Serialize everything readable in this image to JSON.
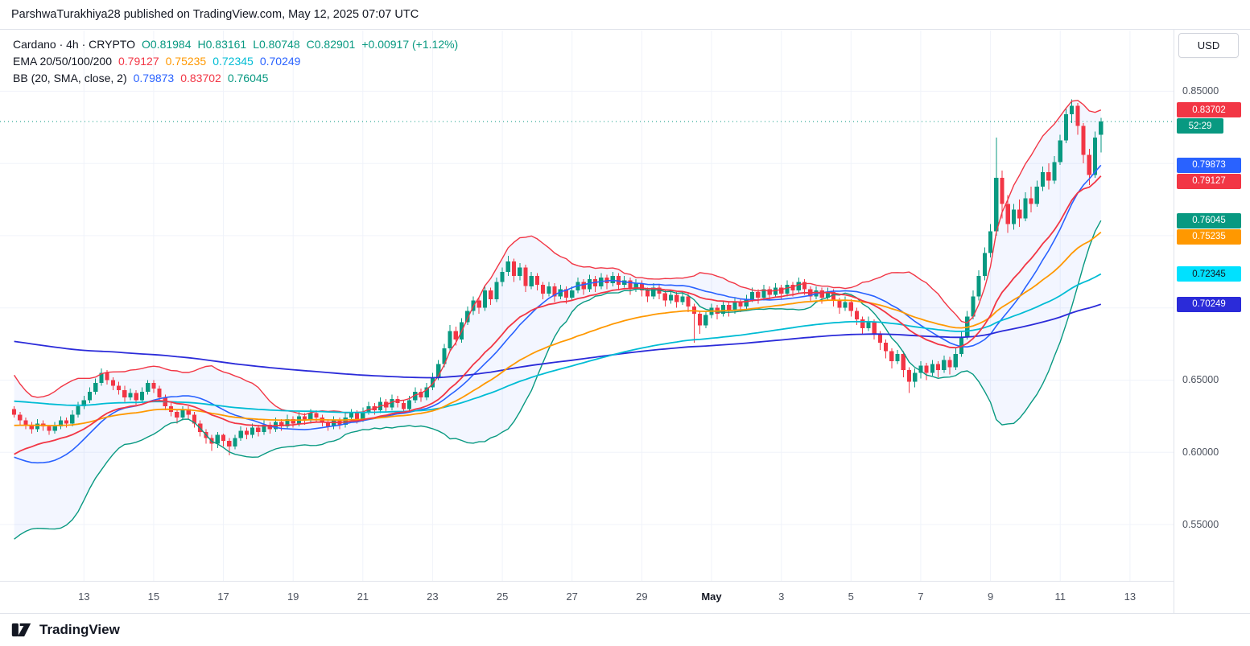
{
  "header": {
    "publish_line": "ParshwaTurakhiya28 published on TradingView.com, May 12, 2025 07:07 UTC"
  },
  "toolbar": {
    "currency_label": "USD"
  },
  "footer": {
    "brand": "TradingView"
  },
  "legend": {
    "symbol_row": {
      "title": "Cardano · 4h · CRYPTO",
      "open": "O0.81984",
      "high": "H0.83161",
      "low": "L0.80748",
      "close": "C0.82901",
      "change": "+0.00917 (+1.12%)"
    },
    "ema_row": {
      "label": "EMA 20/50/100/200",
      "values": [
        {
          "text": "0.79127",
          "color": "#f23645"
        },
        {
          "text": "0.75235",
          "color": "#ff9800"
        },
        {
          "text": "0.72345",
          "color": "#00bcd4"
        },
        {
          "text": "0.70249",
          "color": "#2962ff"
        }
      ]
    },
    "bb_row": {
      "label": "BB (20, SMA, close, 2)",
      "values": [
        {
          "text": "0.79873",
          "color": "#2962ff"
        },
        {
          "text": "0.83702",
          "color": "#f23645"
        },
        {
          "text": "0.76045",
          "color": "#089981"
        }
      ]
    }
  },
  "price_axis": {
    "visible_labels": [
      {
        "price": 0.85,
        "text": "0.85000"
      },
      {
        "price": 0.8,
        "text": "0.80000"
      },
      {
        "price": 0.75,
        "text": "0.75000"
      },
      {
        "price": 0.7,
        "text": "0.70000"
      },
      {
        "price": 0.65,
        "text": "0.65000"
      },
      {
        "price": 0.6,
        "text": "0.60000"
      },
      {
        "price": 0.55,
        "text": "0.55000"
      }
    ],
    "tags": [
      {
        "text": "0.83702",
        "price": 0.83702,
        "bg": "#f23645",
        "fg": "#ffffff",
        "name": "bb-upper-tag"
      },
      {
        "text": "52:29",
        "price": 0.82901,
        "bg": "#089981",
        "fg": "#ffffff",
        "name": "bar-countdown-tag"
      },
      {
        "text": "0.79873",
        "price": 0.79873,
        "bg": "#2962ff",
        "fg": "#ffffff",
        "name": "bb-basis-tag"
      },
      {
        "text": "0.79127",
        "price": 0.79127,
        "bg": "#f23645",
        "fg": "#ffffff",
        "name": "ema20-tag"
      },
      {
        "text": "0.76045",
        "price": 0.76045,
        "bg": "#089981",
        "fg": "#ffffff",
        "name": "bb-lower-tag"
      },
      {
        "text": "0.75235",
        "price": 0.75235,
        "bg": "#ff9800",
        "fg": "#ffffff",
        "name": "ema50-tag"
      },
      {
        "text": "0.72345",
        "price": 0.72345,
        "bg": "#00e1ff",
        "fg": "#131722",
        "name": "ema100-tag"
      },
      {
        "text": "0.70249",
        "price": 0.70249,
        "bg": "#2b2bd9",
        "fg": "#ffffff",
        "name": "ema200-tag"
      }
    ]
  },
  "time_axis": {
    "labels": [
      {
        "text": "13",
        "i": 12
      },
      {
        "text": "15",
        "i": 24
      },
      {
        "text": "17",
        "i": 36
      },
      {
        "text": "19",
        "i": 48
      },
      {
        "text": "21",
        "i": 60
      },
      {
        "text": "23",
        "i": 72
      },
      {
        "text": "25",
        "i": 84
      },
      {
        "text": "27",
        "i": 96
      },
      {
        "text": "29",
        "i": 108
      },
      {
        "text": "May",
        "i": 120,
        "bold": true
      },
      {
        "text": "3",
        "i": 132
      },
      {
        "text": "5",
        "i": 144
      },
      {
        "text": "7",
        "i": 156
      },
      {
        "text": "9",
        "i": 168
      },
      {
        "text": "11",
        "i": 180
      },
      {
        "text": "13",
        "i": 192
      }
    ]
  },
  "chart_data": {
    "type": "candlestick",
    "symbol": "Cardano",
    "interval": "4h",
    "market": "CRYPTO",
    "ohlc_last": {
      "open": 0.81984,
      "high": 0.83161,
      "low": 0.80748,
      "close": 0.82901,
      "change_abs": 0.00917,
      "change_pct": 1.12
    },
    "current_price": 0.82901,
    "ylim": [
      0.511,
      0.892
    ],
    "bars_visible": 200,
    "indicators": {
      "emas": [
        {
          "period": 20,
          "color": "#f23645",
          "last": 0.79127,
          "seed": 0.632
        },
        {
          "period": 50,
          "color": "#ff9800",
          "last": 0.75235,
          "seed": 0.648
        },
        {
          "period": 100,
          "color": "#00bcd4",
          "last": 0.72345,
          "seed": 0.655
        },
        {
          "period": 200,
          "color": "#2b2bd9",
          "last": 0.70249,
          "seed": 0.695
        }
      ],
      "bollinger": {
        "period": 20,
        "stddev": 2,
        "basis_last": 0.79873,
        "upper_last": 0.83702,
        "lower_last": 0.76045,
        "basis_color": "#2962ff",
        "upper_color": "#f23645",
        "lower_color": "#089981",
        "fill": "rgba(41,98,255,0.055)"
      }
    },
    "seed_closes": [
      0.66,
      0.652,
      0.644,
      0.635,
      0.625,
      0.615,
      0.605,
      0.595,
      0.585,
      0.576,
      0.568,
      0.561,
      0.556,
      0.56,
      0.568,
      0.576,
      0.584,
      0.592,
      0.6,
      0.61
    ],
    "candles": [
      [
        0.63,
        0.632,
        0.624,
        0.626
      ],
      [
        0.626,
        0.628,
        0.619,
        0.622
      ],
      [
        0.622,
        0.624,
        0.616,
        0.619
      ],
      [
        0.619,
        0.621,
        0.613,
        0.616
      ],
      [
        0.616,
        0.623,
        0.614,
        0.62
      ],
      [
        0.62,
        0.622,
        0.615,
        0.618
      ],
      [
        0.618,
        0.619,
        0.612,
        0.615
      ],
      [
        0.615,
        0.621,
        0.613,
        0.618
      ],
      [
        0.618,
        0.625,
        0.616,
        0.622
      ],
      [
        0.622,
        0.624,
        0.617,
        0.62
      ],
      [
        0.62,
        0.629,
        0.618,
        0.626
      ],
      [
        0.626,
        0.635,
        0.624,
        0.632
      ],
      [
        0.632,
        0.639,
        0.63,
        0.636
      ],
      [
        0.636,
        0.645,
        0.634,
        0.642
      ],
      [
        0.642,
        0.651,
        0.64,
        0.648
      ],
      [
        0.648,
        0.658,
        0.646,
        0.655
      ],
      [
        0.655,
        0.657,
        0.647,
        0.65
      ],
      [
        0.65,
        0.652,
        0.643,
        0.646
      ],
      [
        0.646,
        0.649,
        0.64,
        0.643
      ],
      [
        0.643,
        0.646,
        0.635,
        0.638
      ],
      [
        0.638,
        0.644,
        0.636,
        0.641
      ],
      [
        0.641,
        0.643,
        0.633,
        0.636
      ],
      [
        0.636,
        0.645,
        0.634,
        0.642
      ],
      [
        0.642,
        0.65,
        0.64,
        0.648
      ],
      [
        0.648,
        0.65,
        0.641,
        0.644
      ],
      [
        0.644,
        0.646,
        0.635,
        0.638
      ],
      [
        0.638,
        0.64,
        0.629,
        0.632
      ],
      [
        0.632,
        0.634,
        0.625,
        0.628
      ],
      [
        0.628,
        0.63,
        0.62,
        0.624
      ],
      [
        0.624,
        0.632,
        0.622,
        0.63
      ],
      [
        0.63,
        0.632,
        0.623,
        0.626
      ],
      [
        0.626,
        0.628,
        0.617,
        0.62
      ],
      [
        0.62,
        0.622,
        0.611,
        0.614
      ],
      [
        0.614,
        0.616,
        0.606,
        0.61
      ],
      [
        0.61,
        0.612,
        0.601,
        0.606
      ],
      [
        0.606,
        0.614,
        0.603,
        0.612
      ],
      [
        0.612,
        0.613,
        0.604,
        0.608
      ],
      [
        0.608,
        0.61,
        0.598,
        0.604
      ],
      [
        0.604,
        0.612,
        0.602,
        0.61
      ],
      [
        0.61,
        0.618,
        0.608,
        0.615
      ],
      [
        0.615,
        0.617,
        0.609,
        0.612
      ],
      [
        0.612,
        0.62,
        0.61,
        0.617
      ],
      [
        0.617,
        0.619,
        0.611,
        0.614
      ],
      [
        0.614,
        0.622,
        0.612,
        0.619
      ],
      [
        0.619,
        0.621,
        0.613,
        0.616
      ],
      [
        0.616,
        0.624,
        0.614,
        0.621
      ],
      [
        0.621,
        0.623,
        0.615,
        0.618
      ],
      [
        0.618,
        0.626,
        0.616,
        0.623
      ],
      [
        0.623,
        0.625,
        0.617,
        0.62
      ],
      [
        0.62,
        0.628,
        0.618,
        0.625
      ],
      [
        0.625,
        0.627,
        0.619,
        0.622
      ],
      [
        0.622,
        0.63,
        0.62,
        0.627
      ],
      [
        0.627,
        0.629,
        0.621,
        0.624
      ],
      [
        0.624,
        0.626,
        0.618,
        0.621
      ],
      [
        0.621,
        0.623,
        0.615,
        0.618
      ],
      [
        0.618,
        0.625,
        0.616,
        0.622
      ],
      [
        0.622,
        0.624,
        0.616,
        0.619
      ],
      [
        0.619,
        0.627,
        0.617,
        0.624
      ],
      [
        0.624,
        0.63,
        0.622,
        0.627
      ],
      [
        0.627,
        0.629,
        0.62,
        0.623
      ],
      [
        0.623,
        0.631,
        0.621,
        0.628
      ],
      [
        0.628,
        0.635,
        0.626,
        0.632
      ],
      [
        0.632,
        0.634,
        0.626,
        0.629
      ],
      [
        0.629,
        0.638,
        0.627,
        0.635
      ],
      [
        0.635,
        0.637,
        0.628,
        0.631
      ],
      [
        0.631,
        0.64,
        0.629,
        0.637
      ],
      [
        0.637,
        0.639,
        0.631,
        0.634
      ],
      [
        0.634,
        0.636,
        0.627,
        0.63
      ],
      [
        0.63,
        0.639,
        0.628,
        0.636
      ],
      [
        0.636,
        0.645,
        0.634,
        0.642
      ],
      [
        0.642,
        0.644,
        0.635,
        0.638
      ],
      [
        0.638,
        0.648,
        0.636,
        0.645
      ],
      [
        0.645,
        0.655,
        0.643,
        0.652
      ],
      [
        0.652,
        0.664,
        0.65,
        0.661
      ],
      [
        0.661,
        0.675,
        0.659,
        0.672
      ],
      [
        0.672,
        0.688,
        0.67,
        0.684
      ],
      [
        0.684,
        0.687,
        0.674,
        0.678
      ],
      [
        0.678,
        0.693,
        0.676,
        0.69
      ],
      [
        0.69,
        0.701,
        0.688,
        0.698
      ],
      [
        0.698,
        0.708,
        0.695,
        0.705
      ],
      [
        0.705,
        0.707,
        0.696,
        0.7
      ],
      [
        0.7,
        0.715,
        0.698,
        0.712
      ],
      [
        0.712,
        0.714,
        0.702,
        0.706
      ],
      [
        0.706,
        0.721,
        0.704,
        0.718
      ],
      [
        0.718,
        0.728,
        0.715,
        0.725
      ],
      [
        0.725,
        0.736,
        0.722,
        0.732
      ],
      [
        0.732,
        0.734,
        0.718,
        0.722
      ],
      [
        0.722,
        0.731,
        0.719,
        0.728
      ],
      [
        0.728,
        0.73,
        0.711,
        0.715
      ],
      [
        0.715,
        0.725,
        0.713,
        0.722
      ],
      [
        0.722,
        0.724,
        0.712,
        0.716
      ],
      [
        0.716,
        0.718,
        0.706,
        0.71
      ],
      [
        0.71,
        0.718,
        0.708,
        0.715
      ],
      [
        0.715,
        0.717,
        0.704,
        0.708
      ],
      [
        0.708,
        0.716,
        0.706,
        0.713
      ],
      [
        0.713,
        0.715,
        0.703,
        0.707
      ],
      [
        0.707,
        0.715,
        0.705,
        0.712
      ],
      [
        0.712,
        0.721,
        0.71,
        0.718
      ],
      [
        0.718,
        0.72,
        0.709,
        0.713
      ],
      [
        0.713,
        0.723,
        0.711,
        0.72
      ],
      [
        0.72,
        0.722,
        0.711,
        0.715
      ],
      [
        0.715,
        0.724,
        0.713,
        0.721
      ],
      [
        0.721,
        0.723,
        0.713,
        0.717
      ],
      [
        0.717,
        0.725,
        0.715,
        0.722
      ],
      [
        0.722,
        0.724,
        0.712,
        0.716
      ],
      [
        0.716,
        0.722,
        0.714,
        0.719
      ],
      [
        0.719,
        0.721,
        0.709,
        0.713
      ],
      [
        0.713,
        0.72,
        0.711,
        0.717
      ],
      [
        0.717,
        0.719,
        0.708,
        0.712
      ],
      [
        0.712,
        0.714,
        0.704,
        0.708
      ],
      [
        0.708,
        0.717,
        0.706,
        0.714
      ],
      [
        0.714,
        0.716,
        0.706,
        0.71
      ],
      [
        0.71,
        0.712,
        0.701,
        0.705
      ],
      [
        0.705,
        0.712,
        0.703,
        0.709
      ],
      [
        0.709,
        0.711,
        0.7,
        0.704
      ],
      [
        0.704,
        0.711,
        0.702,
        0.708
      ],
      [
        0.708,
        0.71,
        0.697,
        0.701
      ],
      [
        0.701,
        0.703,
        0.676,
        0.696
      ],
      [
        0.696,
        0.698,
        0.682,
        0.688
      ],
      [
        0.688,
        0.698,
        0.686,
        0.695
      ],
      [
        0.695,
        0.703,
        0.693,
        0.7
      ],
      [
        0.7,
        0.702,
        0.692,
        0.696
      ],
      [
        0.696,
        0.705,
        0.694,
        0.702
      ],
      [
        0.702,
        0.704,
        0.694,
        0.698
      ],
      [
        0.698,
        0.707,
        0.696,
        0.704
      ],
      [
        0.704,
        0.706,
        0.697,
        0.701
      ],
      [
        0.701,
        0.709,
        0.699,
        0.706
      ],
      [
        0.706,
        0.714,
        0.704,
        0.711
      ],
      [
        0.711,
        0.713,
        0.703,
        0.707
      ],
      [
        0.707,
        0.716,
        0.705,
        0.713
      ],
      [
        0.713,
        0.715,
        0.705,
        0.709
      ],
      [
        0.709,
        0.717,
        0.707,
        0.714
      ],
      [
        0.714,
        0.716,
        0.706,
        0.71
      ],
      [
        0.71,
        0.719,
        0.708,
        0.716
      ],
      [
        0.716,
        0.718,
        0.708,
        0.712
      ],
      [
        0.712,
        0.721,
        0.71,
        0.718
      ],
      [
        0.718,
        0.72,
        0.709,
        0.713
      ],
      [
        0.713,
        0.715,
        0.704,
        0.708
      ],
      [
        0.708,
        0.715,
        0.706,
        0.712
      ],
      [
        0.712,
        0.714,
        0.703,
        0.707
      ],
      [
        0.707,
        0.714,
        0.705,
        0.711
      ],
      [
        0.711,
        0.713,
        0.701,
        0.705
      ],
      [
        0.705,
        0.707,
        0.696,
        0.7
      ],
      [
        0.7,
        0.708,
        0.698,
        0.704
      ],
      [
        0.704,
        0.706,
        0.694,
        0.698
      ],
      [
        0.698,
        0.7,
        0.688,
        0.692
      ],
      [
        0.692,
        0.694,
        0.682,
        0.686
      ],
      [
        0.686,
        0.694,
        0.684,
        0.69
      ],
      [
        0.69,
        0.692,
        0.678,
        0.682
      ],
      [
        0.682,
        0.684,
        0.671,
        0.676
      ],
      [
        0.676,
        0.678,
        0.665,
        0.67
      ],
      [
        0.67,
        0.672,
        0.658,
        0.663
      ],
      [
        0.663,
        0.671,
        0.661,
        0.668
      ],
      [
        0.668,
        0.67,
        0.652,
        0.657
      ],
      [
        0.657,
        0.659,
        0.641,
        0.649
      ],
      [
        0.649,
        0.658,
        0.645,
        0.655
      ],
      [
        0.655,
        0.663,
        0.651,
        0.66
      ],
      [
        0.66,
        0.662,
        0.65,
        0.655
      ],
      [
        0.655,
        0.664,
        0.653,
        0.661
      ],
      [
        0.661,
        0.663,
        0.652,
        0.657
      ],
      [
        0.657,
        0.667,
        0.655,
        0.664
      ],
      [
        0.664,
        0.666,
        0.654,
        0.659
      ],
      [
        0.659,
        0.672,
        0.657,
        0.668
      ],
      [
        0.668,
        0.684,
        0.666,
        0.68
      ],
      [
        0.68,
        0.698,
        0.678,
        0.694
      ],
      [
        0.694,
        0.712,
        0.692,
        0.708
      ],
      [
        0.708,
        0.726,
        0.705,
        0.722
      ],
      [
        0.722,
        0.742,
        0.719,
        0.738
      ],
      [
        0.738,
        0.758,
        0.735,
        0.753
      ],
      [
        0.753,
        0.818,
        0.75,
        0.79
      ],
      [
        0.79,
        0.795,
        0.762,
        0.772
      ],
      [
        0.772,
        0.778,
        0.752,
        0.758
      ],
      [
        0.758,
        0.772,
        0.754,
        0.768
      ],
      [
        0.768,
        0.775,
        0.756,
        0.762
      ],
      [
        0.762,
        0.78,
        0.76,
        0.776
      ],
      [
        0.776,
        0.784,
        0.766,
        0.772
      ],
      [
        0.772,
        0.788,
        0.77,
        0.784
      ],
      [
        0.784,
        0.798,
        0.781,
        0.794
      ],
      [
        0.794,
        0.8,
        0.782,
        0.788
      ],
      [
        0.788,
        0.805,
        0.786,
        0.801
      ],
      [
        0.801,
        0.82,
        0.799,
        0.816
      ],
      [
        0.816,
        0.838,
        0.814,
        0.834
      ],
      [
        0.834,
        0.8445,
        0.828,
        0.84
      ],
      [
        0.84,
        0.842,
        0.82,
        0.826
      ],
      [
        0.826,
        0.828,
        0.8,
        0.806
      ],
      [
        0.806,
        0.81,
        0.785,
        0.792
      ],
      [
        0.792,
        0.822,
        0.79,
        0.818
      ],
      [
        0.81984,
        0.83161,
        0.80748,
        0.82901
      ]
    ],
    "colors": {
      "up": "#089981",
      "down": "#f23645",
      "grid": "#f0f3fa",
      "axis_text": "#4c525e",
      "border": "#e0e3eb"
    }
  }
}
